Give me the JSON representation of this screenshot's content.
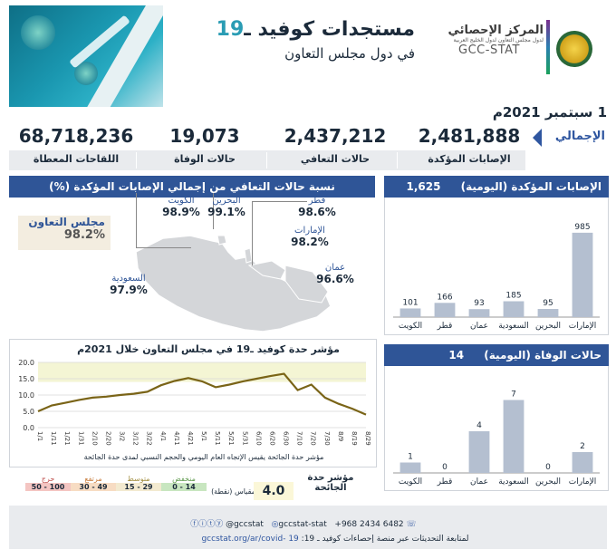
{
  "header": {
    "title_text": "مستجدات كوفيد ـ",
    "title_number": "19",
    "subtitle": "في دول مجلس التعاون",
    "org_name_ar": "المركز الإحصائي",
    "org_subline": "لدول مجلس التعاون لدول الخليج العربية",
    "org_name_en": "GCC-STAT",
    "date": "1 سبتمبر 2021م"
  },
  "totals": {
    "label": "الإجمالي",
    "confirmed_label": "الإصابات المؤكدة",
    "confirmed": "2,481,888",
    "recovered_label": "حالات التعافي",
    "recovered": "2,437,212",
    "deaths_label": "حالات الوفاة",
    "deaths": "19,073",
    "vaccines_label": "اللقاحات المعطاة",
    "vaccines": "68,718,236"
  },
  "recovery": {
    "title": "نسبة حالات التعافي من إجمالي الإصابات المؤكدة (%)",
    "gcc_label": "مجلس التعاون",
    "gcc_value": "98.2%",
    "countries": {
      "kuwait": {
        "name": "الكويت",
        "value": "98.9%"
      },
      "bahrain": {
        "name": "البحرين",
        "value": "99.1%"
      },
      "qatar": {
        "name": "قطر",
        "value": "98.6%"
      },
      "uae": {
        "name": "الإمارات",
        "value": "98.2%"
      },
      "oman": {
        "name": "عمان",
        "value": "96.6%"
      },
      "saudi": {
        "name": "السعودية",
        "value": "97.9%"
      }
    }
  },
  "daily_cases_panel": {
    "title": "الإصابات المؤكدة (اليومية)",
    "total": "1,625"
  },
  "daily_deaths_panel": {
    "title": "حالات الوفاة (اليومية)",
    "total": "14"
  },
  "severity_chart_title_part1": "مؤشر حدة كوفيد ـ",
  "severity_chart_title_num": "19",
  "severity_chart_title_part2": "في مجلس التعاون خلال 2021م",
  "severity_note": "مؤشر حدة الجائحة يقيس الإتجاه العام اليومي والحجم النسبي لمدى حدة الجائحة",
  "scale": {
    "title": "المقياس (نقطة)",
    "levels": [
      {
        "name": "منخفض",
        "range": "0 - 14",
        "color": "#c8e6c0"
      },
      {
        "name": "متوسط",
        "range": "15 - 29",
        "color": "#f3ead0"
      },
      {
        "name": "مرتفع",
        "range": "30 - 49",
        "color": "#f7dcc3"
      },
      {
        "name": "حرج",
        "range": "50 - 100",
        "color": "#f4c5c2"
      }
    ],
    "current_label": "مؤشر حدة الجائحة",
    "current_value": "4.0"
  },
  "footer": {
    "contact": "+968 2434 6482",
    "handle1": "gccstat-stat",
    "handle2": "@gccstat",
    "follow_text": "لمتابعة التحديثات عبر منصة إحصاءات كوفيد ـ 19:",
    "url": "gccstat.org/ar/covid- 19"
  },
  "chart_data": [
    {
      "type": "bar",
      "title": "الإصابات المؤكدة (اليومية)",
      "categories": [
        "الإمارات",
        "البحرين",
        "السعودية",
        "عمان",
        "قطر",
        "الكويت"
      ],
      "values": [
        985,
        95,
        185,
        93,
        166,
        101
      ],
      "ylim": [
        0,
        1100
      ],
      "color": "#b4bfd0"
    },
    {
      "type": "bar",
      "title": "حالات الوفاة (اليومية)",
      "categories": [
        "الإمارات",
        "البحرين",
        "السعودية",
        "عمان",
        "قطر",
        "الكويت"
      ],
      "values": [
        2,
        0,
        7,
        4,
        0,
        1
      ],
      "ylim": [
        0,
        8
      ],
      "color": "#b4bfd0"
    },
    {
      "type": "line",
      "title": "مؤشر حدة كوفيد ـ 19 في مجلس التعاون خلال 2021م",
      "x": [
        "1/1",
        "1/11",
        "1/21",
        "1/31",
        "2/10",
        "2/20",
        "3/2",
        "3/12",
        "3/22",
        "4/1",
        "4/11",
        "4/21",
        "5/1",
        "5/11",
        "5/21",
        "5/31",
        "6/10",
        "6/20",
        "6/30",
        "7/10",
        "7/20",
        "7/30",
        "8/9",
        "8/19",
        "8/29"
      ],
      "y": [
        5.0,
        6.8,
        7.6,
        8.5,
        9.2,
        9.5,
        10.0,
        10.4,
        11.0,
        13.0,
        14.3,
        15.2,
        14.2,
        12.4,
        13.2,
        14.2,
        15.0,
        15.8,
        16.5,
        11.5,
        13.2,
        9.2,
        7.3,
        5.8,
        4.0
      ],
      "ylim": [
        0,
        20
      ],
      "yticks": [
        "0.0",
        "5.0",
        "10.0",
        "15.0",
        "20.0"
      ],
      "color": "#7a6417",
      "band_color": "#f4f5d4"
    }
  ]
}
